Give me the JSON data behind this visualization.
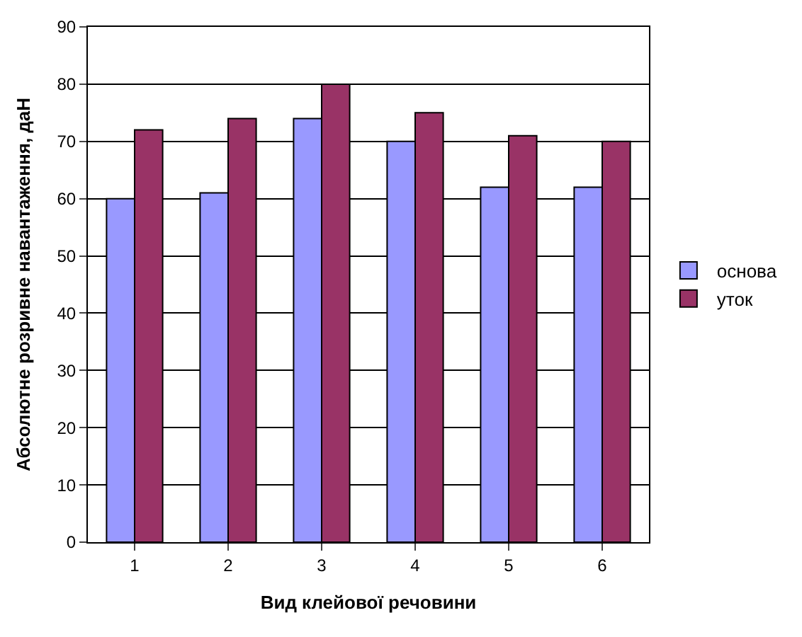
{
  "chart_data": {
    "type": "bar",
    "xlabel": "Вид клейової речовини",
    "ylabel": "Абсолютне розривне навантаження, даН",
    "categories": [
      "1",
      "2",
      "3",
      "4",
      "5",
      "6"
    ],
    "series": [
      {
        "name": "основа",
        "color": "#9999ff",
        "values": [
          60,
          61,
          74,
          70,
          62,
          62
        ]
      },
      {
        "name": "уток",
        "color": "#993366",
        "values": [
          72,
          74,
          80,
          75,
          71,
          70
        ]
      }
    ],
    "ylim": [
      0,
      90
    ],
    "yticks": [
      0,
      10,
      20,
      30,
      40,
      50,
      60,
      70,
      80,
      90
    ],
    "grid": "y",
    "legend": "right"
  }
}
